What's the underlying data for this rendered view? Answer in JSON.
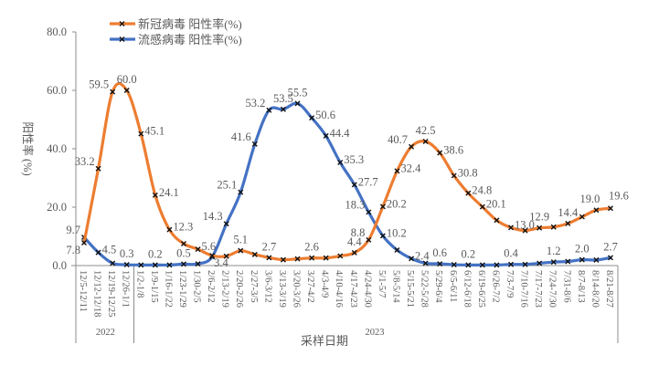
{
  "chart_data": {
    "type": "line",
    "title": "",
    "xlabel": "采样日期",
    "ylabel": "阳性率 (%)",
    "ylim": [
      0,
      80
    ],
    "yticks": [
      "0.0",
      "20.0",
      "40.0",
      "60.0",
      "80.0"
    ],
    "grid": false,
    "legend_position": "top-left",
    "year_groups": [
      {
        "label": "2022",
        "count": 4
      },
      {
        "label": "2023",
        "count": 34
      }
    ],
    "categories": [
      "12/5-12/11",
      "12/12-12/18",
      "12/19-12/25",
      "12/26-1/1",
      "1/2-1/8",
      "1/9-1/15",
      "1/16-1/22",
      "1/23-1/29",
      "1/30-2/5",
      "2/6-2/12",
      "2/13-2/19",
      "2/20-2/26",
      "2/27-3/5",
      "3/6-3/12",
      "3/13-3/19",
      "3/20-3/26",
      "3/27-4/2",
      "4/3-4/9",
      "4/10-4/16",
      "4/17-4/23",
      "4/24-4/30",
      "5/1-5/7",
      "5/8-5/14",
      "5/15-5/21",
      "5/22-5/28",
      "5/29-6/4",
      "6/5-6/11",
      "6/12-6/18",
      "6/19-6/25",
      "6/26-7/2",
      "7/3-7/9",
      "7/10-7/16",
      "7/17-7/23",
      "7/24-7/30",
      "7/31-8/6",
      "8/7-8/13",
      "8/14-8/20",
      "8/21-8/27"
    ],
    "series": [
      {
        "name": "新冠病毒 阳性率(%)",
        "color": "#ED7D31",
        "values": [
          7.8,
          33.2,
          59.5,
          60.0,
          45.1,
          24.1,
          12.3,
          7.5,
          5.6,
          3.4,
          3.2,
          5.1,
          3.8,
          2.7,
          2.0,
          2.3,
          2.6,
          2.6,
          3.3,
          4.4,
          8.8,
          20.2,
          32.4,
          40.7,
          42.5,
          38.6,
          30.8,
          24.8,
          20.1,
          15.5,
          13.0,
          12.0,
          12.9,
          13.2,
          14.4,
          16.7,
          19.0,
          19.6
        ],
        "labels": [
          "7.8",
          "33.2",
          "59.5",
          "60.0",
          "45.1",
          "24.1",
          "12.3",
          "",
          "5.6",
          "3.4",
          "",
          "5.1",
          "",
          "2.7",
          "",
          "",
          "2.6",
          "",
          "",
          "4.4",
          "8.8",
          "20.2",
          "32.4",
          "40.7",
          "42.5",
          "38.6",
          "30.8",
          "24.8",
          "20.1",
          "",
          "13.0",
          "",
          "12.9",
          "",
          "14.4",
          "",
          "19.0",
          "19.6"
        ]
      },
      {
        "name": "流感病毒 阳性率(%)",
        "color": "#4472C4",
        "values": [
          9.7,
          4.5,
          0.8,
          0.3,
          0.2,
          0.2,
          0.2,
          0.5,
          0.6,
          3.0,
          14.3,
          25.1,
          41.6,
          53.2,
          53.5,
          55.5,
          50.6,
          44.4,
          35.3,
          27.7,
          18.3,
          10.2,
          5.3,
          2.4,
          0.8,
          0.6,
          0.3,
          0.2,
          0.2,
          0.2,
          0.4,
          0.4,
          0.8,
          1.2,
          1.4,
          2.0,
          1.9,
          2.7
        ],
        "labels": [
          "9.7",
          "4.5",
          "",
          "0.3",
          "",
          "0.2",
          "",
          "0.5",
          "",
          "",
          "14.3",
          "25.1",
          "41.6",
          "53.2",
          "53.5",
          "55.5",
          "50.6",
          "44.4",
          "35.3",
          "27.7",
          "18.3",
          "10.2",
          "",
          "2.4",
          "",
          "0.6",
          "",
          "0.2",
          "",
          "",
          "0.4",
          "",
          "",
          "1.2",
          "",
          "2.0",
          "",
          "2.7"
        ]
      }
    ]
  }
}
